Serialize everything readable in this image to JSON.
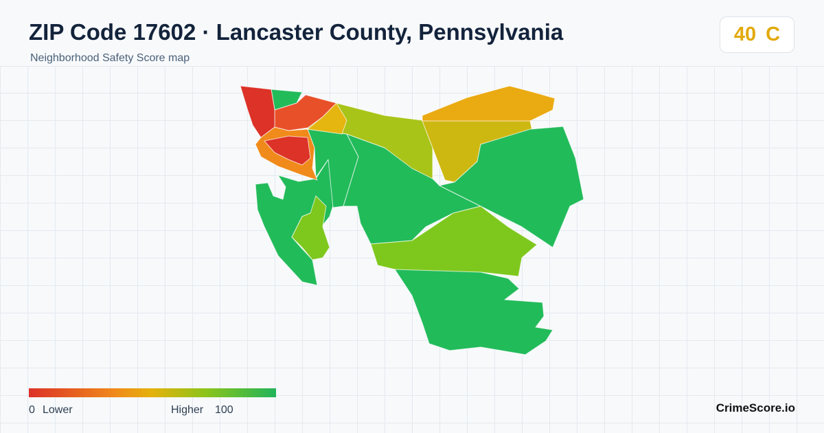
{
  "header": {
    "title": "ZIP Code 17602 · Lancaster County, Pennsylvania",
    "subtitle": "Neighborhood Safety Score map"
  },
  "score": {
    "value": 40,
    "grade": "C"
  },
  "legend": {
    "min": 0,
    "min_label": "Lower",
    "max_label": "Higher",
    "max": 100
  },
  "footer": {
    "brand": "CrimeScore.io"
  }
}
